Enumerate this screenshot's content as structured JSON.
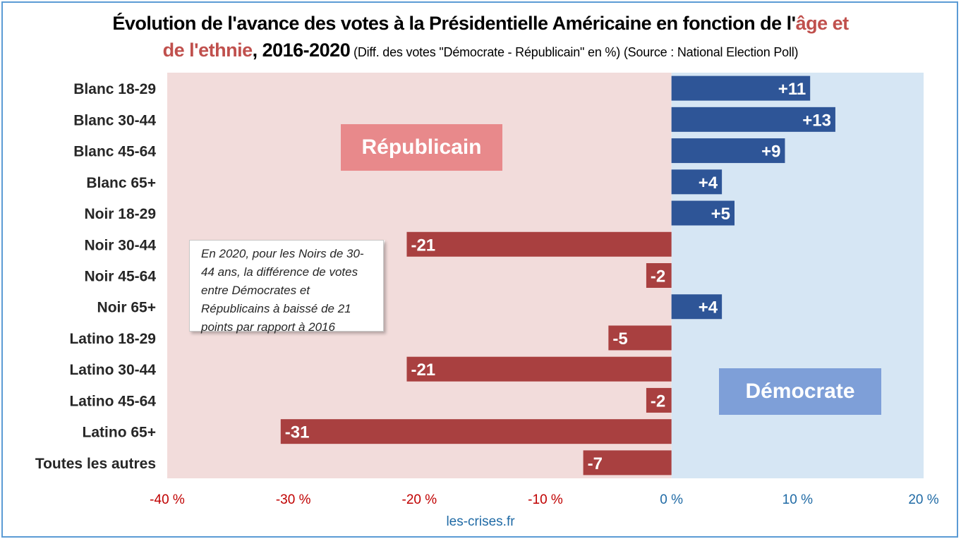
{
  "title": {
    "part1": "Évolution de l'avance des votes à la Présidentielle Américaine en fonction de l'",
    "accent1": "âge et",
    "accent2": "de l'ethnie",
    "part2": ", 2016-2020",
    "subtitle": " (Diff. des votes \"Démocrate - Républicain\" en %) (Source : National Election Poll)"
  },
  "zones": {
    "republican": "Républicain",
    "democrat": "Démocrate"
  },
  "callout": "En 2020, pour les Noirs de 30-44 ans, la différence de votes entre Démocrates et Républicains à baissé de 21 points par rapport à 2016",
  "source": "les-crises.fr",
  "colors": {
    "positive_bar": "#2e5597",
    "negative_bar": "#a94040",
    "rep_bg": "#f2dcdb",
    "dem_bg": "#d6e6f4",
    "neg_tick": "#c00000",
    "pos_tick": "#1f6aa5"
  },
  "chart_data": {
    "type": "bar",
    "orientation": "horizontal",
    "categories": [
      "Blanc 18-29",
      "Blanc 30-44",
      "Blanc 45-64",
      "Blanc 65+",
      "Noir 18-29",
      "Noir 30-44",
      "Noir 45-64",
      "Noir 65+",
      "Latino 18-29",
      "Latino 30-44",
      "Latino 45-64",
      "Latino 65+",
      "Toutes les autres"
    ],
    "values": [
      11,
      13,
      9,
      4,
      5,
      -21,
      -2,
      4,
      -5,
      -21,
      -2,
      -31,
      -7
    ],
    "value_labels": [
      "+11",
      "+13",
      "+9",
      "+4",
      "+5",
      "-21",
      "-2",
      "+4",
      "-5",
      "-21",
      "-2",
      "-31",
      "-7"
    ],
    "xlim": [
      -40,
      20
    ],
    "xticks": [
      -40,
      -30,
      -20,
      -10,
      0,
      10,
      20
    ],
    "xtick_labels": [
      "-40 %",
      "-30 %",
      "-20 %",
      "-10 %",
      "0 %",
      "10 %",
      "20 %"
    ]
  }
}
